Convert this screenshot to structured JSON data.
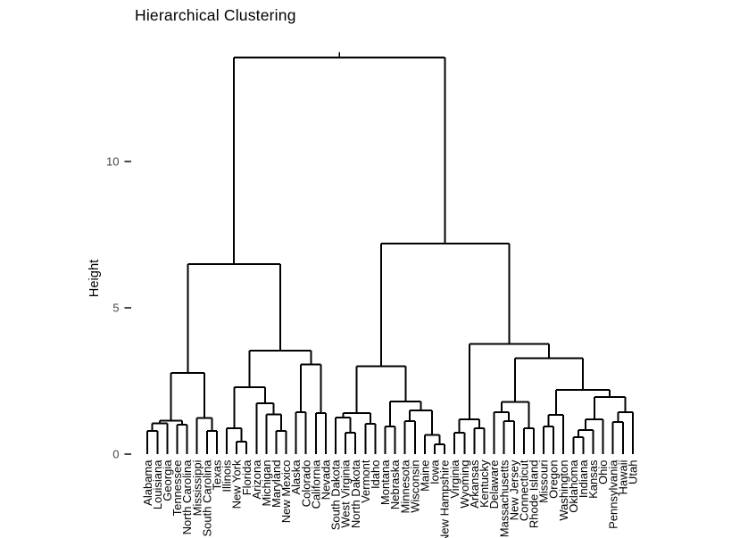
{
  "chart_data": {
    "type": "dendrogram",
    "title": "Hierarchical Clustering",
    "ylabel": "Height",
    "yticks": [
      0,
      5,
      10
    ],
    "ylim": [
      0,
      13.9
    ],
    "grid": false,
    "legend": "none",
    "colors": {
      "line": "#000000",
      "axis_text": "#444444",
      "tick": "#333333",
      "title": "#000000",
      "background": "#ffffff"
    },
    "leaf_order": [
      "Alabama",
      "Louisiana",
      "Georgia",
      "Tennessee",
      "North Carolina",
      "Mississippi",
      "South Carolina",
      "Texas",
      "Illinois",
      "New York",
      "Florida",
      "Arizona",
      "Michigan",
      "Maryland",
      "New Mexico",
      "Alaska",
      "Colorado",
      "California",
      "Nevada",
      "South Dakota",
      "West Virginia",
      "North Dakota",
      "Vermont",
      "Idaho",
      "Montana",
      "Nebraska",
      "Minnesota",
      "Wisconsin",
      "Maine",
      "Iowa",
      "New Hampshire",
      "Virginia",
      "Wyoming",
      "Arkansas",
      "Kentucky",
      "Delaware",
      "Massachusetts",
      "New Jersey",
      "Connecticut",
      "Rhode Island",
      "Missouri",
      "Oregon",
      "Washington",
      "Oklahoma",
      "Indiana",
      "Kansas",
      "Ohio",
      "Pennsylvania",
      "Hawaii",
      "Utah"
    ],
    "tree": {
      "h": 13.55,
      "c": [
        {
          "h": 6.5,
          "c": [
            {
              "h": 2.77,
              "c": [
                {
                  "h": 1.15,
                  "c": [
                    {
                      "h": 1.05,
                      "c": [
                        {
                          "h": 0.79,
                          "c": [
                            {
                              "l": "Alabama"
                            },
                            {
                              "l": "Louisiana"
                            }
                          ]
                        },
                        {
                          "l": "Georgia"
                        }
                      ]
                    },
                    {
                      "h": 1.0,
                      "c": [
                        {
                          "l": "Tennessee"
                        },
                        {
                          "l": "North Carolina"
                        }
                      ]
                    }
                  ]
                },
                {
                  "h": 1.24,
                  "c": [
                    {
                      "l": "Mississippi"
                    },
                    {
                      "h": 0.79,
                      "c": [
                        {
                          "l": "South Carolina"
                        },
                        {
                          "l": "Texas"
                        }
                      ]
                    }
                  ]
                }
              ]
            },
            {
              "h": 3.53,
              "c": [
                {
                  "h": 2.28,
                  "c": [
                    {
                      "h": 0.88,
                      "c": [
                        {
                          "l": "Illinois"
                        },
                        {
                          "h": 0.43,
                          "c": [
                            {
                              "l": "New York"
                            },
                            {
                              "l": "Florida"
                            }
                          ]
                        }
                      ]
                    },
                    {
                      "h": 1.74,
                      "c": [
                        {
                          "l": "Arizona"
                        },
                        {
                          "h": 1.35,
                          "c": [
                            {
                              "l": "Michigan"
                            },
                            {
                              "h": 0.8,
                              "c": [
                                {
                                  "l": "Maryland"
                                },
                                {
                                  "l": "New Mexico"
                                }
                              ]
                            }
                          ]
                        }
                      ]
                    }
                  ]
                },
                {
                  "h": 3.07,
                  "c": [
                    {
                      "h": 1.43,
                      "c": [
                        {
                          "l": "Alaska"
                        },
                        {
                          "l": "Colorado"
                        }
                      ]
                    },
                    {
                      "h": 1.4,
                      "c": [
                        {
                          "l": "California"
                        },
                        {
                          "l": "Nevada"
                        }
                      ]
                    }
                  ]
                }
              ]
            }
          ]
        },
        {
          "h": 7.2,
          "c": [
            {
              "h": 3.0,
              "c": [
                {
                  "h": 1.4,
                  "c": [
                    {
                      "h": 1.25,
                      "c": [
                        {
                          "l": "South Dakota"
                        },
                        {
                          "h": 0.73,
                          "c": [
                            {
                              "l": "West Virginia"
                            },
                            {
                              "l": "North Dakota"
                            }
                          ]
                        }
                      ]
                    },
                    {
                      "h": 1.03,
                      "c": [
                        {
                          "l": "Vermont"
                        },
                        {
                          "l": "Idaho"
                        }
                      ]
                    }
                  ]
                },
                {
                  "h": 1.8,
                  "c": [
                    {
                      "h": 0.94,
                      "c": [
                        {
                          "l": "Montana"
                        },
                        {
                          "l": "Nebraska"
                        }
                      ]
                    },
                    {
                      "h": 1.5,
                      "c": [
                        {
                          "h": 1.13,
                          "c": [
                            {
                              "l": "Minnesota"
                            },
                            {
                              "l": "Wisconsin"
                            }
                          ]
                        },
                        {
                          "h": 0.66,
                          "c": [
                            {
                              "l": "Maine"
                            },
                            {
                              "h": 0.33,
                              "c": [
                                {
                                  "l": "Iowa"
                                },
                                {
                                  "l": "New Hampshire"
                                }
                              ]
                            }
                          ]
                        }
                      ]
                    }
                  ]
                }
              ]
            },
            {
              "h": 3.77,
              "c": [
                {
                  "h": 1.19,
                  "c": [
                    {
                      "h": 0.73,
                      "c": [
                        {
                          "l": "Virginia"
                        },
                        {
                          "l": "Wyoming"
                        }
                      ]
                    },
                    {
                      "h": 0.88,
                      "c": [
                        {
                          "l": "Arkansas"
                        },
                        {
                          "l": "Kentucky"
                        }
                      ]
                    }
                  ]
                },
                {
                  "h": 3.27,
                  "c": [
                    {
                      "h": 1.79,
                      "c": [
                        {
                          "h": 1.43,
                          "c": [
                            {
                              "l": "Delaware"
                            },
                            {
                              "h": 1.13,
                              "c": [
                                {
                                  "l": "Massachusetts"
                                },
                                {
                                  "l": "New Jersey"
                                }
                              ]
                            }
                          ]
                        },
                        {
                          "h": 0.88,
                          "c": [
                            {
                              "l": "Connecticut"
                            },
                            {
                              "l": "Rhode Island"
                            }
                          ]
                        }
                      ]
                    },
                    {
                      "h": 2.19,
                      "c": [
                        {
                          "h": 1.34,
                          "c": [
                            {
                              "h": 0.95,
                              "c": [
                                {
                                  "l": "Missouri"
                                },
                                {
                                  "l": "Oregon"
                                }
                              ]
                            },
                            {
                              "l": "Washington"
                            }
                          ]
                        },
                        {
                          "h": 1.95,
                          "c": [
                            {
                              "h": 1.19,
                              "c": [
                                {
                                  "h": 0.83,
                                  "c": [
                                    {
                                      "h": 0.58,
                                      "c": [
                                        {
                                          "l": "Oklahoma"
                                        },
                                        {
                                          "l": "Indiana"
                                        }
                                      ]
                                    },
                                    {
                                      "l": "Kansas"
                                    }
                                  ]
                                },
                                {
                                  "l": "Ohio"
                                }
                              ]
                            },
                            {
                              "h": 1.43,
                              "c": [
                                {
                                  "h": 1.1,
                                  "c": [
                                    {
                                      "l": "Pennsylvania"
                                    },
                                    {
                                      "l": "Hawaii"
                                    }
                                  ]
                                },
                                {
                                  "l": "Utah"
                                }
                              ]
                            }
                          ]
                        }
                      ]
                    }
                  ]
                }
              ]
            }
          ]
        }
      ]
    }
  }
}
